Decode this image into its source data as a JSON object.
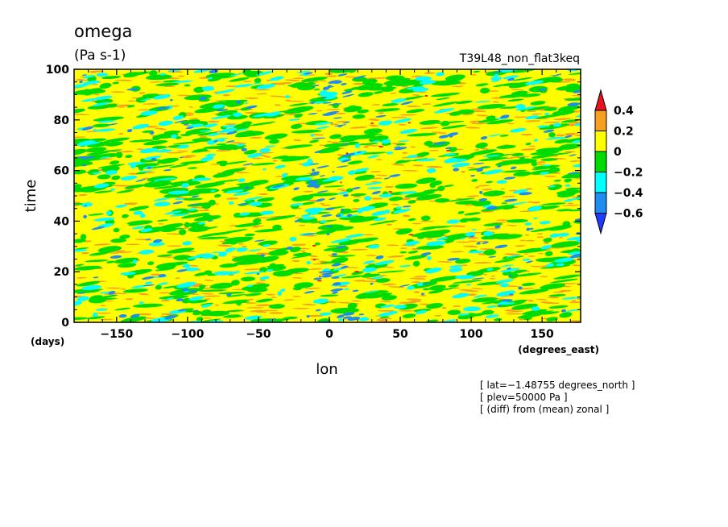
{
  "chart_data": {
    "type": "heatmap",
    "title": "omega",
    "units": "(Pa s-1)",
    "dataset_label": "T39L48_non_flat3keq",
    "xlabel": "lon",
    "ylabel": "time",
    "x_units": "(degrees_east)",
    "y_units": "(days)",
    "xlim": [
      -180,
      177.1875
    ],
    "ylim": [
      0,
      100
    ],
    "x_ticks": [
      -150,
      -100,
      -50,
      0,
      50,
      100,
      150
    ],
    "x_tick_labels": [
      "−150",
      "−100",
      "−50",
      "0",
      "50",
      "100",
      "150"
    ],
    "y_ticks": [
      0,
      20,
      40,
      60,
      80,
      100
    ],
    "y_tick_labels": [
      "0",
      "20",
      "40",
      "60",
      "80",
      "100"
    ],
    "colorbar": {
      "levels": [
        0.4,
        0.2,
        0,
        -0.2,
        -0.4,
        -0.6
      ],
      "labels": [
        "0.4",
        "0.2",
        "0",
        "−0.2",
        "−0.4",
        "−0.6"
      ],
      "colors": [
        "#e8121e",
        "#f5a020",
        "#ffff00",
        "#00dc00",
        "#00ffff",
        "#1e8cf0",
        "#1e3cff"
      ]
    },
    "field_note": "zonal-anomaly field of mostly near-zero values (0 to 0.2) with scattered negative streaks",
    "annotations": [
      "[ lat=−1.48755 degrees_north ]",
      "[ plev=50000 Pa ]",
      "[ (diff) from (mean) zonal ]"
    ]
  }
}
